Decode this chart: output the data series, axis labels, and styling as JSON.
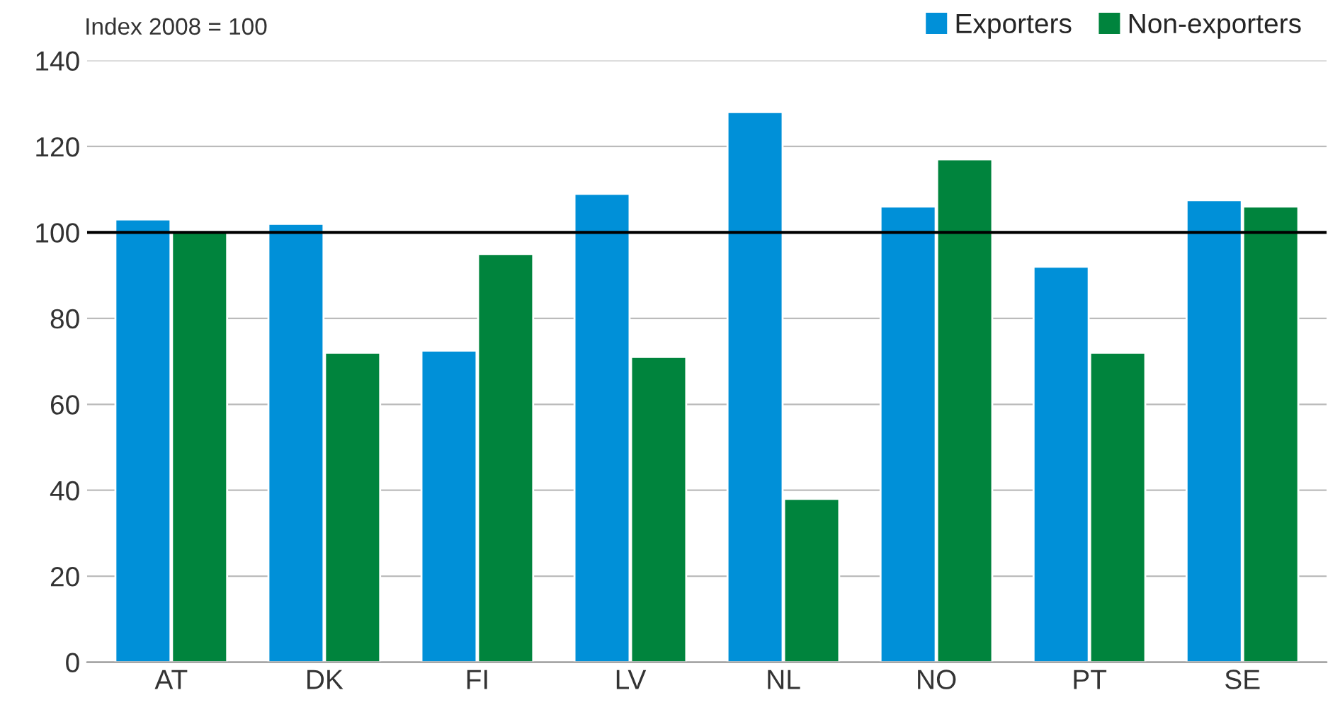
{
  "chart_data": {
    "type": "bar",
    "ylabel": "Index 2008 = 100",
    "categories": [
      "AT",
      "DK",
      "FI",
      "LV",
      "NL",
      "NO",
      "PT",
      "SE"
    ],
    "series": [
      {
        "name": "Exporters",
        "color": "#0090d8",
        "values": [
          103,
          102,
          72.5,
          109,
          128,
          106,
          92,
          107.5
        ]
      },
      {
        "name": "Non-exporters",
        "color": "#00843d",
        "values": [
          100,
          72,
          95,
          71,
          38,
          117,
          72,
          106
        ]
      }
    ],
    "ylim": [
      0,
      140
    ],
    "yticks": [
      0,
      20,
      40,
      60,
      80,
      100,
      120,
      140
    ],
    "grid": "y",
    "legend": "top right",
    "ref_lines": [
      {
        "axis": "y",
        "value": 100,
        "color": "#000000",
        "line_style": "solid"
      }
    ]
  }
}
